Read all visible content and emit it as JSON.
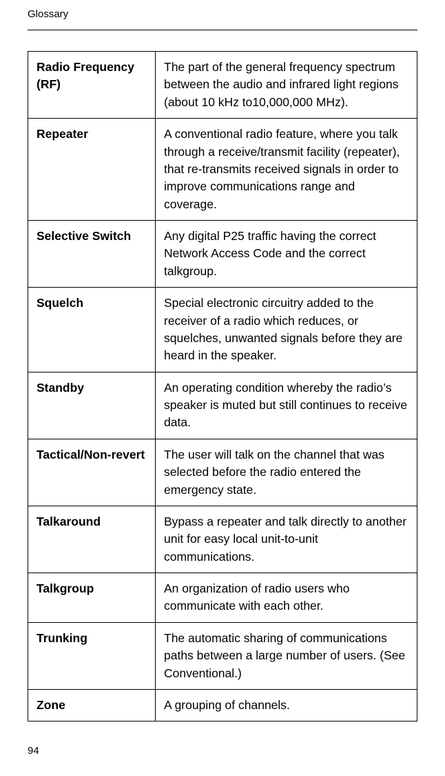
{
  "header": {
    "title": "Glossary"
  },
  "rows": [
    {
      "term": "Radio Frequency (RF)",
      "definition": "The part of the general frequency spectrum between the audio and infrared light regions (about 10 kHz to10,000,000 MHz)."
    },
    {
      "term": "Repeater",
      "definition": "A conventional radio feature, where you talk through a receive/transmit facility (repeater), that re-transmits received signals in order to improve communications range and coverage."
    },
    {
      "term": "Selective Switch",
      "definition": "Any digital P25 traffic having the correct Network Access Code and the correct talkgroup."
    },
    {
      "term": "Squelch",
      "definition": "Special electronic circuitry added to the receiver of a radio which reduces, or squelches, unwanted signals before they are heard in the speaker."
    },
    {
      "term": "Standby",
      "definition": "An operating condition whereby the radio’s speaker is muted but still continues to receive data."
    },
    {
      "term": "Tactical/Non-revert",
      "definition": "The user will talk on the channel that was selected before the radio entered the emergency state."
    },
    {
      "term": "Talkaround",
      "definition": "Bypass a repeater and talk directly to another unit for easy local unit-to-unit communications."
    },
    {
      "term": "Talkgroup",
      "definition": "An organization of radio users who communicate with each other."
    },
    {
      "term": "Trunking",
      "definition": "The automatic sharing of communications paths between a large number of users. (See Conventional.)"
    },
    {
      "term": "Zone",
      "definition": "A grouping of channels."
    }
  ],
  "page_number": "94"
}
